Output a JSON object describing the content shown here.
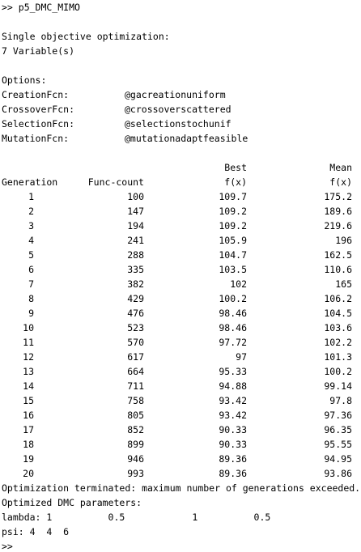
{
  "console": {
    "command": ">> p5_DMC_MIMO",
    "objective": "Single objective optimization:",
    "variables": "7 Variable(s)",
    "options_heading": "Options:",
    "options": [
      {
        "name": "CreationFcn:",
        "value": "@gacreationuniform"
      },
      {
        "name": "CrossoverFcn:",
        "value": "@crossoverscattered"
      },
      {
        "name": "SelectionFcn:",
        "value": "@selectionstochunif"
      },
      {
        "name": "MutationFcn:",
        "value": "@mutationadaptfeasible"
      }
    ],
    "table": {
      "header_top": {
        "best": "Best",
        "mean": "Mean"
      },
      "header": {
        "generation": "Generation",
        "func_count": "Func-count",
        "best": "f(x)",
        "mean": "f(x)"
      },
      "rows": [
        {
          "gen": "1",
          "fc": "100",
          "best": "109.7",
          "mean": "175.2"
        },
        {
          "gen": "2",
          "fc": "147",
          "best": "109.2",
          "mean": "189.6"
        },
        {
          "gen": "3",
          "fc": "194",
          "best": "109.2",
          "mean": "219.6"
        },
        {
          "gen": "4",
          "fc": "241",
          "best": "105.9",
          "mean": "196"
        },
        {
          "gen": "5",
          "fc": "288",
          "best": "104.7",
          "mean": "162.5"
        },
        {
          "gen": "6",
          "fc": "335",
          "best": "103.5",
          "mean": "110.6"
        },
        {
          "gen": "7",
          "fc": "382",
          "best": "102",
          "mean": "165"
        },
        {
          "gen": "8",
          "fc": "429",
          "best": "100.2",
          "mean": "106.2"
        },
        {
          "gen": "9",
          "fc": "476",
          "best": "98.46",
          "mean": "104.5"
        },
        {
          "gen": "10",
          "fc": "523",
          "best": "98.46",
          "mean": "103.6"
        },
        {
          "gen": "11",
          "fc": "570",
          "best": "97.72",
          "mean": "102.2"
        },
        {
          "gen": "12",
          "fc": "617",
          "best": "97",
          "mean": "101.3"
        },
        {
          "gen": "13",
          "fc": "664",
          "best": "95.33",
          "mean": "100.2"
        },
        {
          "gen": "14",
          "fc": "711",
          "best": "94.88",
          "mean": "99.14"
        },
        {
          "gen": "15",
          "fc": "758",
          "best": "93.42",
          "mean": "97.8"
        },
        {
          "gen": "16",
          "fc": "805",
          "best": "93.42",
          "mean": "97.36"
        },
        {
          "gen": "17",
          "fc": "852",
          "best": "90.33",
          "mean": "96.35"
        },
        {
          "gen": "18",
          "fc": "899",
          "best": "90.33",
          "mean": "95.55"
        },
        {
          "gen": "19",
          "fc": "946",
          "best": "89.36",
          "mean": "94.95"
        },
        {
          "gen": "20",
          "fc": "993",
          "best": "89.36",
          "mean": "93.86"
        }
      ]
    },
    "termination": "Optimization terminated: maximum number of generations exceeded.",
    "params_heading": "Optimized DMC parameters:",
    "lambda_line": "lambda: 1          0.5            1          0.5",
    "psi_line": "psi: 4  4  6",
    "prompt": ">>"
  }
}
